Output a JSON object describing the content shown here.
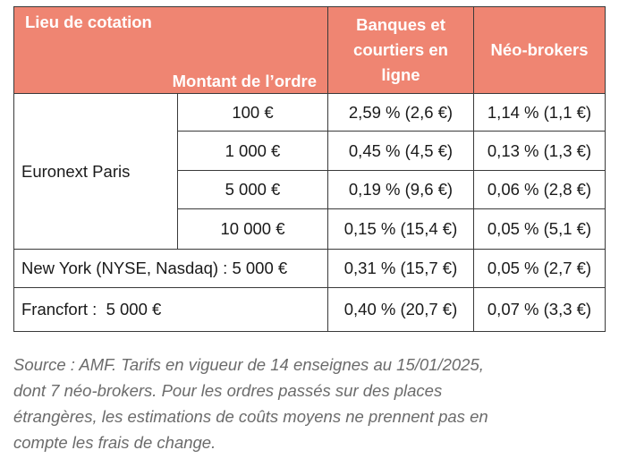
{
  "table": {
    "header": {
      "lieu": "Lieu de cotation",
      "montant": "Montant de l’ordre",
      "col_banques_line1": "Banques et",
      "col_banques_line2": "courtiers en",
      "col_banques_line3": "ligne",
      "col_neo": "Néo-brokers"
    },
    "euronext": {
      "label": "Euronext Paris",
      "rows": [
        {
          "amount": "100 €",
          "banques": "2,59 % (2,6 €)",
          "neo": "1,14 % (1,1 €)"
        },
        {
          "amount": "1 000 €",
          "banques": "0,45 % (4,5 €)",
          "neo": "0,13 % (1,3 €)"
        },
        {
          "amount": "5 000 €",
          "banques": "0,19 % (9,6 €)",
          "neo": "0,06 % (2,8 €)"
        },
        {
          "amount": "10 000 €",
          "banques": "0,15 % (15,4 €)",
          "neo": "0,05 % (5,1 €)"
        }
      ]
    },
    "newyork": {
      "label": "New York (NYSE, Nasdaq) : 5 000 €",
      "banques": "0,31 % (15,7 €)",
      "neo": "0,05 % (2,7 €)"
    },
    "francfort": {
      "label": "Francfort :  5 000 €",
      "banques": "0,40 % (20,7 €)",
      "neo": "0,07 % (3,3 €)"
    }
  },
  "source": {
    "line1": "Source : AMF. Tarifs en vigueur de 14 enseignes au 15/01/2025,",
    "line2": "dont 7 néo-brokers. Pour les ordres passés sur des places",
    "line3": "étrangères, les estimations de coûts moyens ne prennent pas en",
    "line4": "compte les frais de change."
  },
  "colors": {
    "header_bg": "#ef8572",
    "header_text": "#ffffff",
    "source_text": "#6b6b6b"
  }
}
